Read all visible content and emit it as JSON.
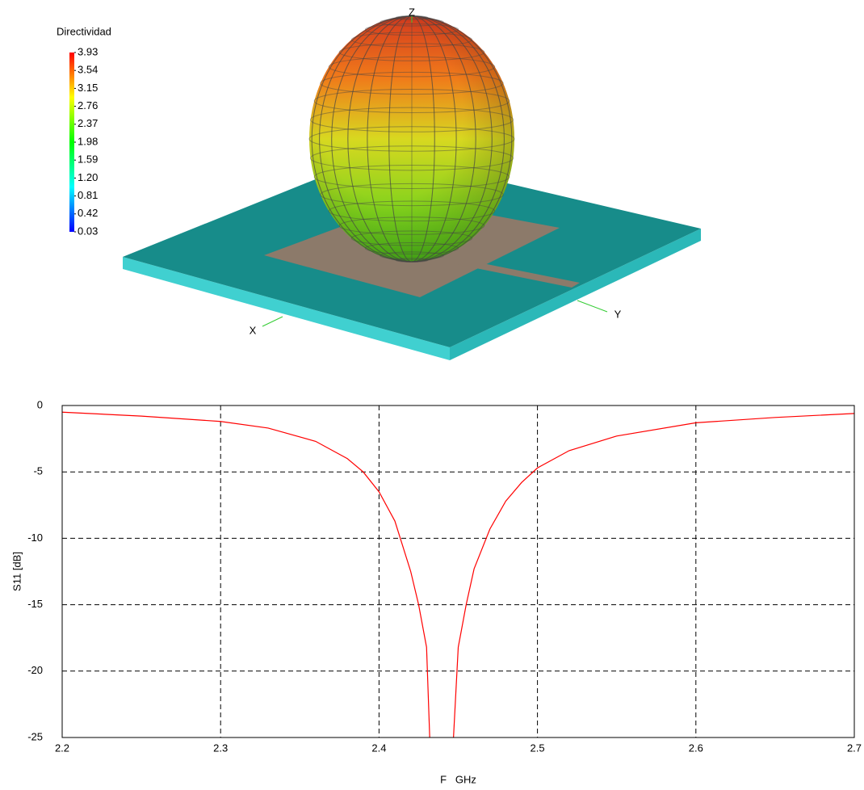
{
  "chart_data": [
    {
      "type": "pattern3d",
      "colorbar_title": "Directividad",
      "clim": [
        0.03,
        3.93
      ],
      "cticks": [
        3.93,
        3.54,
        3.15,
        2.76,
        2.37,
        1.98,
        1.59,
        {
          "value": 1.2,
          "label": "1.20"
        },
        0.81,
        0.42,
        0.03
      ],
      "colormap": [
        "#0000ff",
        "#00ffff",
        "#00ff00",
        "#ffff00",
        "#ff0000"
      ],
      "axis_labels": [
        "X",
        "Y",
        "Z"
      ]
    },
    {
      "type": "line",
      "xlabel": "F   GHz",
      "ylabel": "S11 [dB]",
      "x": [
        2.2,
        2.25,
        2.3,
        2.33,
        2.36,
        2.38,
        2.39,
        2.4,
        2.41,
        2.42,
        2.425,
        2.43,
        2.432,
        2.44,
        2.447,
        2.45,
        2.455,
        2.46,
        2.47,
        2.48,
        2.49,
        2.5,
        2.52,
        2.55,
        2.6,
        2.65,
        2.7
      ],
      "series": [
        {
          "color": "#ff0000",
          "values": [
            -0.5,
            -0.8,
            -1.2,
            -1.7,
            -2.7,
            -4.0,
            -5.0,
            -6.5,
            -8.7,
            -12.5,
            -15,
            -18.2,
            -25,
            null,
            -25,
            -18.2,
            -15,
            -12.3,
            -9.3,
            -7.2,
            -5.8,
            -4.7,
            -3.4,
            -2.3,
            -1.3,
            -0.9,
            -0.6
          ]
        }
      ],
      "xlim": [
        2.2,
        2.7
      ],
      "ylim": [
        -25,
        0
      ],
      "xticks": [
        2.2,
        2.3,
        2.4,
        2.5,
        2.6,
        2.7
      ],
      "yticks": [
        -25,
        -20,
        -15,
        -10,
        -5,
        0
      ],
      "grid": true
    }
  ]
}
